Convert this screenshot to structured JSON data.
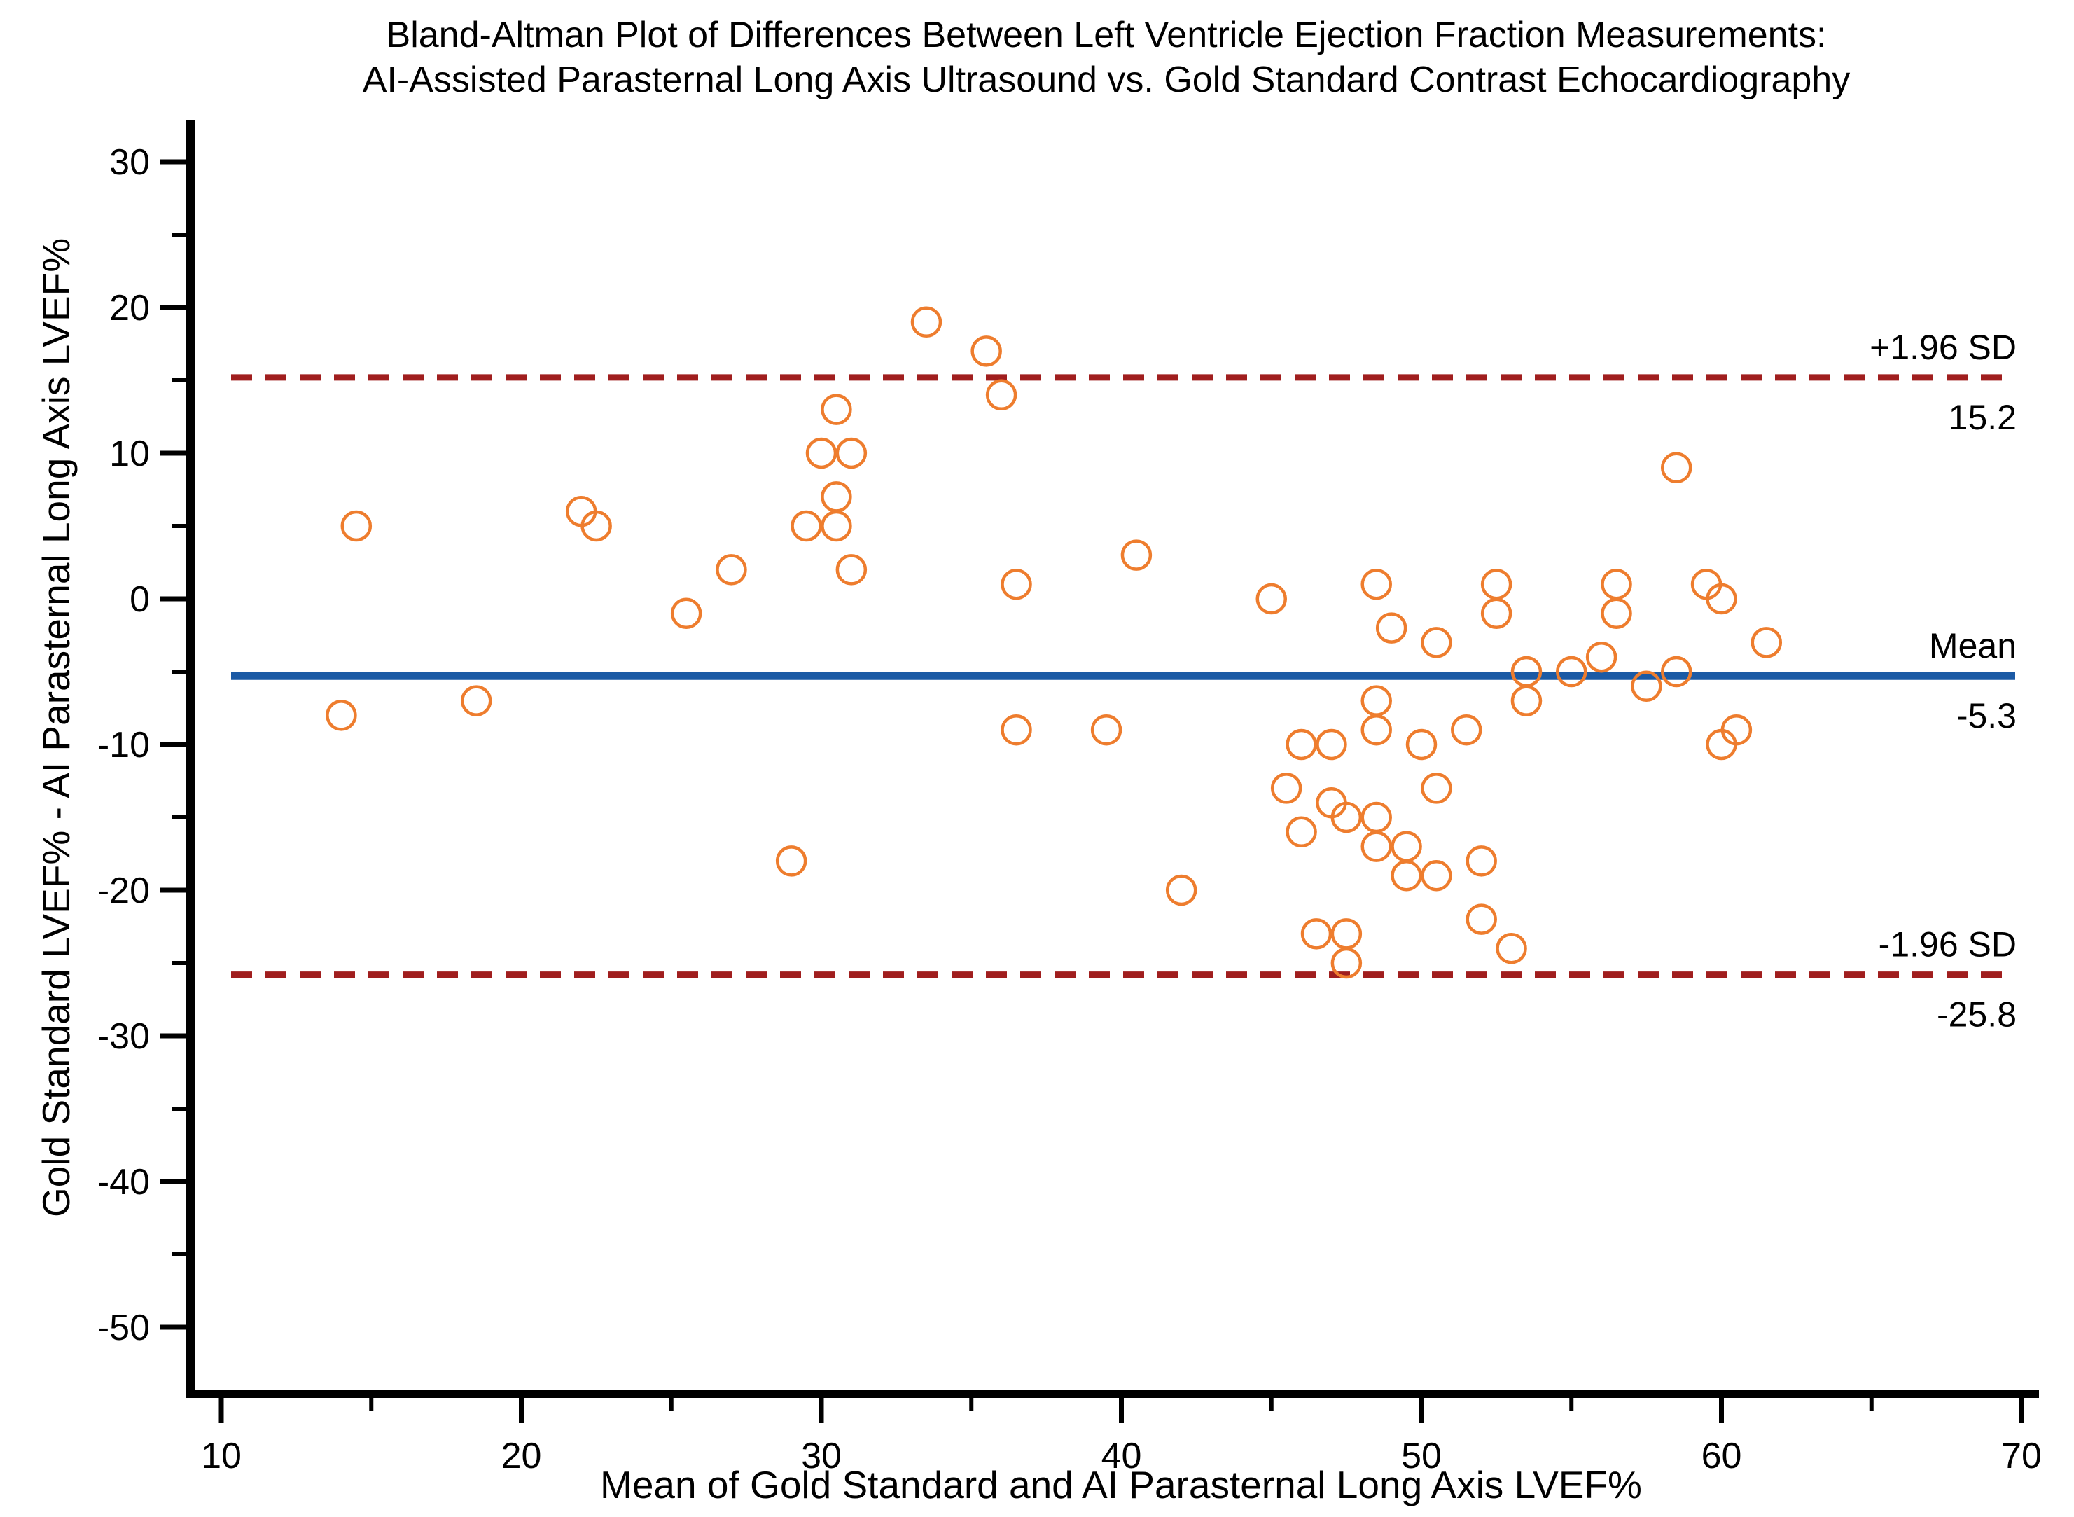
{
  "chart_data": {
    "type": "scatter",
    "title_line1": "Bland-Altman Plot of Differences Between Left Ventricle Ejection Fraction Measurements:",
    "title_line2": "AI-Assisted Parasternal Long Axis Ultrasound vs. Gold Standard Contrast Echocardiography",
    "xlabel": "Mean of Gold Standard and AI Parasternal Long Axis LVEF%",
    "ylabel": "Gold Standard LVEF% - AI Parasternal Long Axis LVEF%",
    "x_axis": {
      "min": 10,
      "max": 70,
      "major_ticks": [
        10,
        20,
        30,
        40,
        50,
        60,
        70
      ],
      "minor_ticks": [
        15,
        25,
        35,
        45,
        55,
        65
      ],
      "grid": false
    },
    "y_axis": {
      "min": -50,
      "max": 30,
      "major_ticks": [
        30,
        20,
        10,
        0,
        -10,
        -20,
        -30,
        -40,
        -50
      ],
      "minor_ticks": [
        25,
        15,
        5,
        -5,
        -15,
        -25,
        -35,
        -45
      ],
      "grid": false
    },
    "reference_lines": [
      {
        "id": "upper-loa",
        "value": 15.2,
        "label": "+1.96 SD",
        "value_label": "15.2",
        "style": "dashed",
        "color": "#A01E1E"
      },
      {
        "id": "mean",
        "value": -5.3,
        "label": "Mean",
        "value_label": "-5.3",
        "style": "solid",
        "color": "#1B5AA5"
      },
      {
        "id": "lower-loa",
        "value": -25.8,
        "label": "-1.96 SD",
        "value_label": "-25.8",
        "style": "dashed",
        "color": "#A01E1E"
      }
    ],
    "marker": {
      "shape": "open-circle",
      "color": "#EE7D2E",
      "radius": 20,
      "stroke_width": 4.5
    },
    "points": [
      [
        14.5,
        5
      ],
      [
        14,
        -8
      ],
      [
        18.5,
        -7
      ],
      [
        22,
        6
      ],
      [
        22.5,
        5
      ],
      [
        25.5,
        -1
      ],
      [
        27,
        2
      ],
      [
        29,
        -18
      ],
      [
        29.5,
        5
      ],
      [
        30,
        10
      ],
      [
        31,
        10
      ],
      [
        30.5,
        13
      ],
      [
        30.5,
        7
      ],
      [
        30.5,
        5
      ],
      [
        31,
        2
      ],
      [
        33.5,
        19
      ],
      [
        35.5,
        17
      ],
      [
        36,
        14
      ],
      [
        36.5,
        1
      ],
      [
        36.5,
        -9
      ],
      [
        39.5,
        -9
      ],
      [
        40.5,
        3
      ],
      [
        42,
        -20
      ],
      [
        45,
        0
      ],
      [
        48.5,
        1
      ],
      [
        49,
        -2
      ],
      [
        50.5,
        -3
      ],
      [
        48.5,
        -7
      ],
      [
        48.5,
        -9
      ],
      [
        46,
        -10
      ],
      [
        47,
        -10
      ],
      [
        50,
        -10
      ],
      [
        51.5,
        -9
      ],
      [
        45.5,
        -13
      ],
      [
        50.5,
        -13
      ],
      [
        47,
        -14
      ],
      [
        47.5,
        -15
      ],
      [
        48.5,
        -15
      ],
      [
        46,
        -16
      ],
      [
        48.5,
        -17
      ],
      [
        49.5,
        -17
      ],
      [
        49.5,
        -19
      ],
      [
        50.5,
        -19
      ],
      [
        52,
        -18
      ],
      [
        46.5,
        -23
      ],
      [
        47.5,
        -23
      ],
      [
        47.5,
        -25
      ],
      [
        52,
        -22
      ],
      [
        53,
        -24
      ],
      [
        52.5,
        1
      ],
      [
        52.5,
        -1
      ],
      [
        53.5,
        -5
      ],
      [
        53.5,
        -7
      ],
      [
        55,
        -5
      ],
      [
        56,
        -4
      ],
      [
        56.5,
        1
      ],
      [
        56.5,
        -1
      ],
      [
        57.5,
        -6
      ],
      [
        58.5,
        -5
      ],
      [
        58.5,
        9
      ],
      [
        59.5,
        1
      ],
      [
        60,
        0
      ],
      [
        60,
        -10
      ],
      [
        60.5,
        -9
      ],
      [
        61.5,
        -3
      ]
    ],
    "axis_color": "#000000",
    "tick_label_font_size": 52,
    "annotation_font_size": 50
  }
}
